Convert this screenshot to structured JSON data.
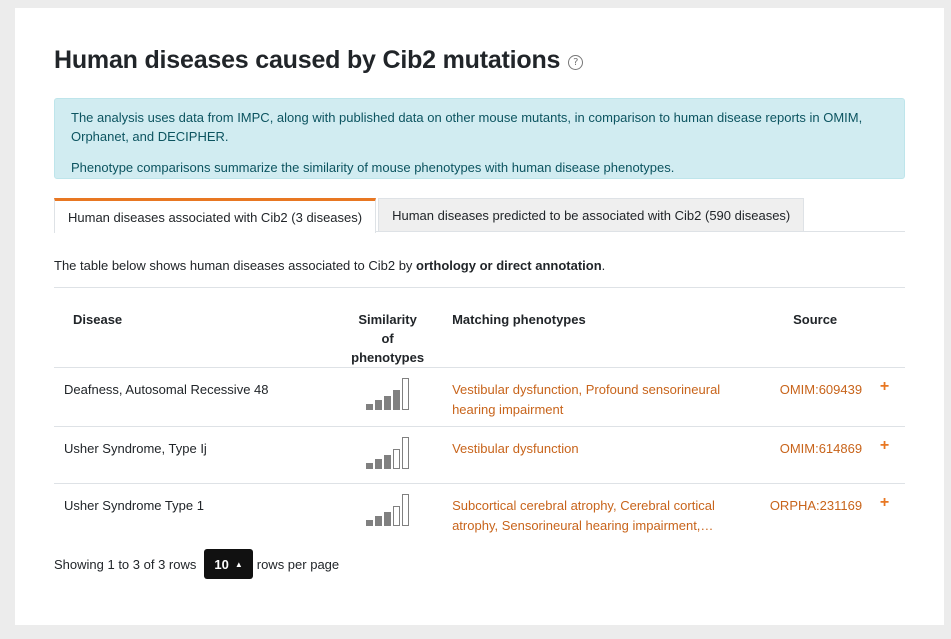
{
  "header": {
    "title": "Human diseases caused by Cib2 mutations",
    "help_glyph": "?"
  },
  "info": {
    "line1": "The analysis uses data from IMPC, along with published data on other mouse mutants, in comparison to human disease reports in OMIM, Orphanet, and DECIPHER.",
    "line2": "Phenotype comparisons summarize the similarity of mouse phenotypes with human disease phenotypes."
  },
  "tabs": [
    {
      "label": "Human diseases associated with Cib2 (3 diseases)",
      "active": true
    },
    {
      "label": "Human diseases predicted to be associated with Cib2 (590 diseases)",
      "active": false
    }
  ],
  "description": {
    "prefix": "The table below shows human diseases associated to Cib2 by ",
    "bold": "orthology or direct annotation",
    "suffix": "."
  },
  "table": {
    "headers": {
      "disease": "Disease",
      "similarity": "Similarity of phenotypes",
      "matching": "Matching phenotypes",
      "source": "Source"
    },
    "rows": [
      {
        "disease": "Deafness, Autosomal Recessive 48",
        "similarity_level": 4,
        "matching": "Vestibular dysfunction, Profound sensorineural hearing impairment",
        "source": "OMIM:609439",
        "expand": "+"
      },
      {
        "disease": "Usher Syndrome, Type Ij",
        "similarity_level": 3,
        "matching": "Vestibular dysfunction",
        "source": "OMIM:614869",
        "expand": "+"
      },
      {
        "disease": "Usher Syndrome Type 1",
        "similarity_level": 3,
        "matching": "Subcortical cerebral atrophy, Cerebral cortical atrophy, Sensorineural hearing impairment, Abnorm...",
        "source": "ORPHA:231169",
        "expand": "+"
      }
    ]
  },
  "pagination": {
    "showing": "Showing 1 to 3 of 3 rows",
    "page_size": "10",
    "suffix": "rows per page"
  },
  "colors": {
    "accent": "#e87722",
    "link": "#c8641b",
    "info_bg": "#d1ecf1",
    "info_text": "#0c5460"
  }
}
